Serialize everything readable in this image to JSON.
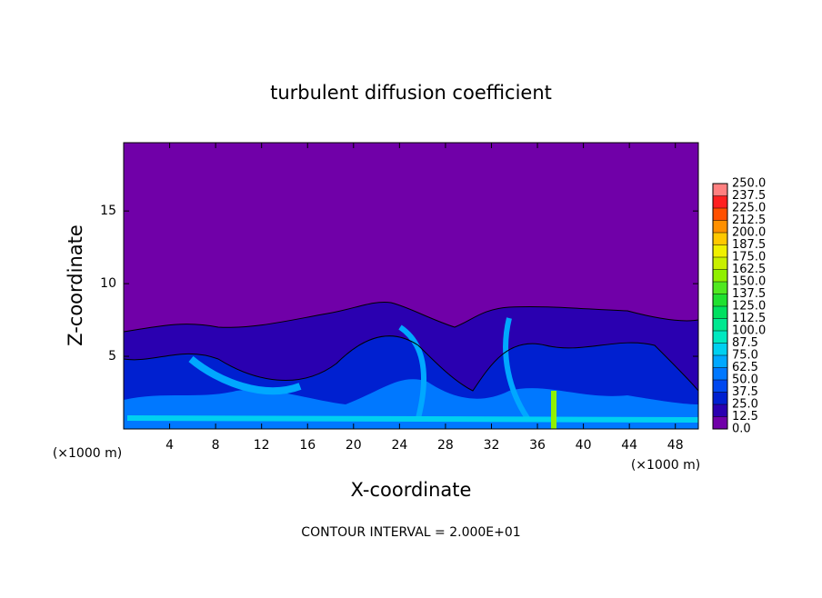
{
  "chart_data": {
    "type": "contour",
    "title": "turbulent diffusion coefficient",
    "xlabel": "X-coordinate",
    "ylabel": "Z-coordinate",
    "x_unit_label": "(×1000 m)",
    "footer": "CONTOUR INTERVAL = 2.000E+01",
    "xlim": [
      0,
      50
    ],
    "ylim": [
      0,
      19.7
    ],
    "xticks": [
      4,
      8,
      12,
      16,
      20,
      24,
      28,
      32,
      36,
      40,
      44,
      48
    ],
    "yticks": [
      5,
      10,
      15
    ],
    "grid": false,
    "colorbar": {
      "levels": [
        {
          "value": 0,
          "label": "0.0"
        },
        12.5,
        {
          "value": 25,
          "label": "25.0"
        },
        37.5,
        {
          "value": 50,
          "label": "50.0"
        },
        62.5,
        {
          "value": 75,
          "label": "75.0"
        },
        87.5,
        {
          "value": 100,
          "label": "100.0"
        },
        112.5,
        {
          "value": 125,
          "label": "125.0"
        },
        137.5,
        {
          "value": 150,
          "label": "150.0"
        },
        162.5,
        {
          "value": 175,
          "label": "175.0"
        },
        187.5,
        {
          "value": 200,
          "label": "200.0"
        },
        212.5,
        {
          "value": 225,
          "label": "225.0"
        },
        237.5,
        {
          "value": 250,
          "label": "250.0"
        }
      ],
      "colors": [
        "#7000a8",
        "#2a00b0",
        "#0020d0",
        "#0048f0",
        "#0078ff",
        "#00a8ff",
        "#00d0f0",
        "#00e8c0",
        "#00e890",
        "#00e060",
        "#20e030",
        "#50e820",
        "#90f000",
        "#c8f000",
        "#f0f000",
        "#ffc800",
        "#ff9000",
        "#ff5000",
        "#ff2020",
        "#ff8080"
      ]
    }
  }
}
